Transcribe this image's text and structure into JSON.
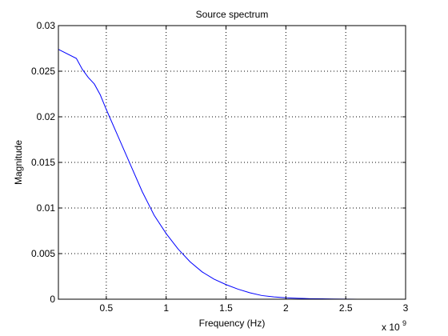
{
  "chart_data": {
    "type": "line",
    "title": "Source spectrum",
    "xlabel": "Frequency (Hz)",
    "ylabel": "Magnitude",
    "x_multiplier_label": {
      "base": "x 10",
      "exp": "9"
    },
    "xlim": [
      0.1,
      3.0
    ],
    "ylim": [
      0,
      0.03
    ],
    "x_ticks": [
      0.5,
      1,
      1.5,
      2,
      2.5,
      3
    ],
    "x_tick_labels": [
      "0.5",
      "1",
      "1.5",
      "2",
      "2.5",
      "3"
    ],
    "y_ticks": [
      0,
      0.005,
      0.01,
      0.015,
      0.02,
      0.025,
      0.03
    ],
    "y_tick_labels": [
      "0",
      "0.005",
      "0.01",
      "0.015",
      "0.02",
      "0.025",
      "0.03"
    ],
    "grid": true,
    "line_color": "#0000ff",
    "series": [
      {
        "x": [
          0.1,
          0.25,
          0.3,
          0.35,
          0.4,
          0.45,
          0.5,
          0.6,
          0.7,
          0.8,
          0.9,
          1.0,
          1.1,
          1.2,
          1.3,
          1.4,
          1.5,
          1.6,
          1.7,
          1.8,
          1.9,
          2.0,
          2.1,
          2.2,
          2.3,
          2.4,
          2.5,
          2.6,
          2.7,
          2.8,
          2.9,
          3.0
        ],
        "y": [
          0.0274,
          0.0264,
          0.0252,
          0.0243,
          0.0236,
          0.0224,
          0.0208,
          0.0178,
          0.0148,
          0.0118,
          0.0092,
          0.0072,
          0.0055,
          0.0041,
          0.003,
          0.0022,
          0.0016,
          0.0011,
          0.0007,
          0.0004,
          0.00025,
          0.00015,
          0.0001,
          6e-05,
          4e-05,
          2e-05,
          1e-05,
          5e-06,
          2e-06,
          1e-06,
          5e-07,
          0.0
        ]
      }
    ]
  }
}
